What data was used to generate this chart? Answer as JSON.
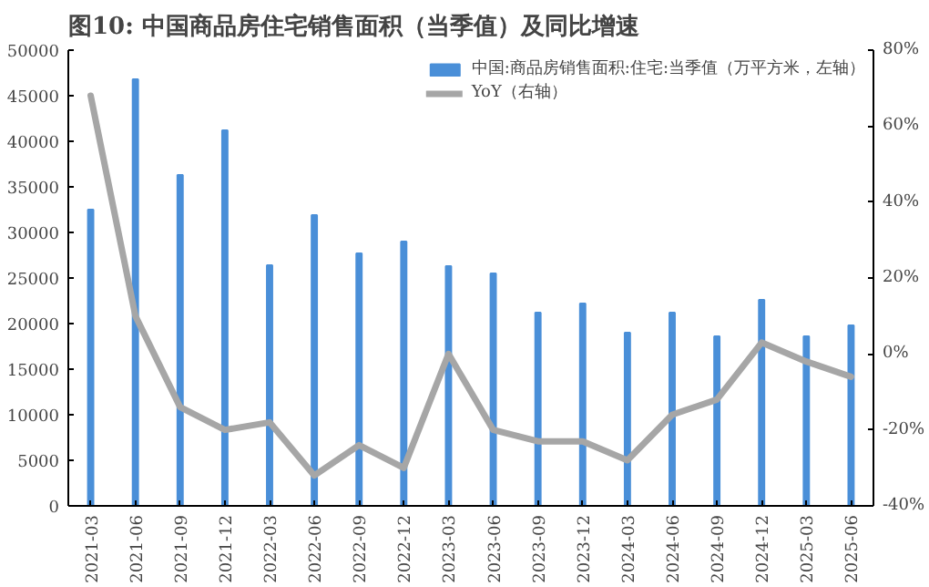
{
  "chart_data": {
    "type": "bar",
    "title": "图10:  中国商品房住宅销售面积（当季值）及同比增速",
    "categories": [
      "2021-03",
      "2021-06",
      "2021-09",
      "2021-12",
      "2022-03",
      "2022-06",
      "2022-09",
      "2022-12",
      "2023-03",
      "2023-06",
      "2023-09",
      "2023-12",
      "2024-03",
      "2024-06",
      "2024-09",
      "2024-12",
      "2025-03",
      "2025-06"
    ],
    "series": [
      {
        "name": "中国:商品房销售面积:住宅:当季值（万平方米，左轴）",
        "color": "#4a8fd8",
        "values": [
          32500,
          46800,
          36300,
          41200,
          26400,
          31900,
          27700,
          29000,
          26300,
          25500,
          21200,
          22200,
          19000,
          21200,
          18600,
          22600,
          18600,
          19800
        ]
      },
      {
        "name": "YoY（右轴）",
        "type": "line",
        "axis": "y2",
        "color": "#a6a6a6",
        "values": [
          68,
          10,
          -14,
          -20,
          -18,
          -32,
          -24,
          -30,
          0,
          -20,
          -23,
          -23,
          -28,
          -16,
          -12,
          3,
          -2,
          -6
        ]
      }
    ],
    "ylim": [
      0,
      50000
    ],
    "yticks": [
      0,
      5000,
      10000,
      15000,
      20000,
      25000,
      30000,
      35000,
      40000,
      45000,
      50000
    ],
    "y2lim": [
      -40,
      80
    ],
    "y2ticks": [
      {
        "value": -40,
        "label": "-40%"
      },
      {
        "value": -20,
        "label": "-20%"
      },
      {
        "value": 0,
        "label": "0%"
      },
      {
        "value": 20,
        "label": "20%"
      },
      {
        "value": 40,
        "label": "40%"
      },
      {
        "value": 60,
        "label": "60%"
      },
      {
        "value": 80,
        "label": "80%"
      }
    ],
    "legend": "top right",
    "grid": false
  }
}
